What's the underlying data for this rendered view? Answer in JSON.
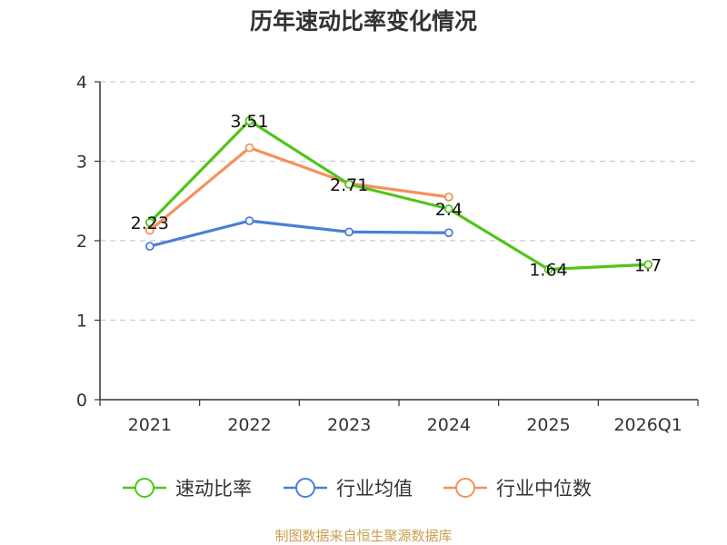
{
  "chart_data": {
    "type": "line",
    "title": "历年速动比率变化情况",
    "categories": [
      "2021",
      "2022",
      "2023",
      "2024",
      "2025",
      "2026Q1"
    ],
    "ylim": [
      0,
      4
    ],
    "yticks": [
      0,
      1,
      2,
      3,
      4
    ],
    "grid": true,
    "legend_position": "bottom",
    "series": [
      {
        "name": "速动比率",
        "color": "#52c41a",
        "values": [
          2.23,
          3.51,
          2.71,
          2.4,
          1.64,
          1.7
        ],
        "labels": [
          "2.23",
          "3.51",
          "2.71",
          "2.4",
          "1.64",
          "1.7"
        ]
      },
      {
        "name": "行业均值",
        "color": "#4a7fd6",
        "values": [
          1.93,
          2.25,
          2.11,
          2.1,
          null,
          null
        ]
      },
      {
        "name": "行业中位数",
        "color": "#f5915c",
        "values": [
          2.13,
          3.17,
          2.72,
          2.55,
          null,
          null
        ]
      }
    ]
  },
  "footer": {
    "source": "制图数据来自恒生聚源数据库"
  }
}
